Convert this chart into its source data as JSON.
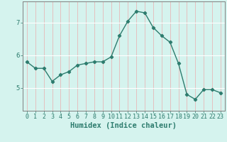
{
  "x": [
    0,
    1,
    2,
    3,
    4,
    5,
    6,
    7,
    8,
    9,
    10,
    11,
    12,
    13,
    14,
    15,
    16,
    17,
    18,
    19,
    20,
    21,
    22,
    23
  ],
  "y": [
    5.8,
    5.6,
    5.6,
    5.2,
    5.4,
    5.5,
    5.7,
    5.75,
    5.8,
    5.8,
    5.95,
    6.6,
    7.05,
    7.35,
    7.3,
    6.85,
    6.6,
    6.4,
    5.75,
    4.8,
    4.65,
    4.95,
    4.95,
    4.85
  ],
  "line_color": "#2d7c6e",
  "marker": "D",
  "marker_size": 2.2,
  "linewidth": 1.0,
  "xlabel": "Humidex (Indice chaleur)",
  "xlim": [
    -0.5,
    23.5
  ],
  "ylim": [
    4.3,
    7.65
  ],
  "yticks": [
    5,
    6,
    7
  ],
  "xticks": [
    0,
    1,
    2,
    3,
    4,
    5,
    6,
    7,
    8,
    9,
    10,
    11,
    12,
    13,
    14,
    15,
    16,
    17,
    18,
    19,
    20,
    21,
    22,
    23
  ],
  "bg_color": "#d5f3ee",
  "grid_color_v": "#e8b8b8",
  "grid_color_h": "#ffffff",
  "axis_color": "#808080",
  "tick_color": "#2d7c6e",
  "xlabel_fontsize": 7.5,
  "tick_fontsize": 6.0
}
